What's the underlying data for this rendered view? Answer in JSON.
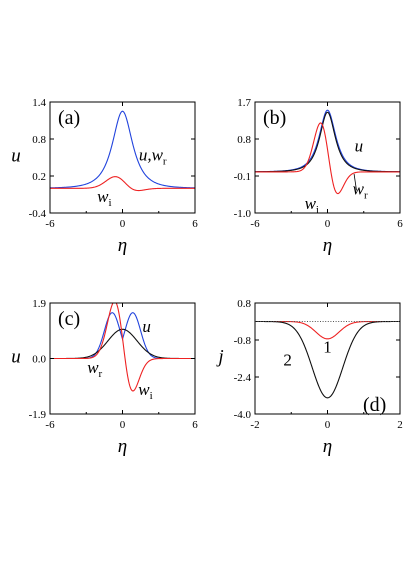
{
  "chart_data": [
    {
      "panel": "(a)",
      "type": "line",
      "xlabel": "η",
      "ylabel": "u",
      "xlim": [
        -6,
        6
      ],
      "ylim": [
        -0.4,
        1.4
      ],
      "xticks": [
        "-6",
        "0",
        "6"
      ],
      "yticks": [
        "1.4",
        "0.8",
        "0.2",
        "-0.4"
      ],
      "annotations": [
        {
          "text": "u,w",
          "sub": "r",
          "x": 2.5,
          "y": 0.45
        },
        {
          "text": "w",
          "sub": "i",
          "x": -1.5,
          "y": -0.22
        }
      ],
      "series": [
        {
          "color": "#2244dd",
          "kind": "lorentz",
          "amp": 1.25,
          "width": 1.1,
          "for": "u,w_r"
        },
        {
          "color": "#ee2222",
          "kind": "mixed",
          "amp": 0.13,
          "odd": 0.1,
          "width": 0.9,
          "for": "w_i"
        }
      ]
    },
    {
      "panel": "(b)",
      "type": "line",
      "xlabel": "η",
      "ylabel": "",
      "xlim": [
        -6,
        6
      ],
      "ylim": [
        -1.0,
        1.7
      ],
      "xticks": [
        "-6",
        "0",
        "6"
      ],
      "yticks": [
        "1.7",
        "0.8",
        "-0.1",
        "-1.0"
      ],
      "annotations": [
        {
          "text": "u",
          "sub": "",
          "x": 2.6,
          "y": 0.5
        },
        {
          "text": "w",
          "sub": "r",
          "x": 2.7,
          "y": -0.55
        },
        {
          "text": "w",
          "sub": "i",
          "x": -1.3,
          "y": -0.9
        }
      ],
      "series": [
        {
          "color": "#2244dd",
          "kind": "lorentz",
          "amp": 1.5,
          "width": 0.9,
          "for": "u"
        },
        {
          "color": "#111111",
          "kind": "lorentz",
          "amp": 1.45,
          "width": 0.85,
          "for": "w_r"
        },
        {
          "color": "#ee2222",
          "kind": "mixed",
          "amp": 0.55,
          "odd": 0.85,
          "width": 0.7,
          "for": "w_i"
        }
      ]
    },
    {
      "panel": "(c)",
      "type": "line",
      "xlabel": "η",
      "ylabel": "u",
      "xlim": [
        -6,
        6
      ],
      "ylim": [
        -1.9,
        1.9
      ],
      "xticks": [
        "-6",
        "0",
        "6"
      ],
      "yticks": [
        "1.9",
        "0.0",
        "-1.9"
      ],
      "annotations": [
        {
          "text": "u",
          "sub": "",
          "x": 2.0,
          "y": 0.9
        },
        {
          "text": "w",
          "sub": "r",
          "x": -2.3,
          "y": -0.5
        },
        {
          "text": "w",
          "sub": "i",
          "x": 1.9,
          "y": -1.25
        }
      ],
      "series": [
        {
          "color": "#2244dd",
          "kind": "twopeak",
          "amp": 1.6,
          "sep": 0.85,
          "width": 0.65,
          "for": "u"
        },
        {
          "color": "#111111",
          "kind": "gauss",
          "amp": 1.0,
          "width": 1.2,
          "for": "w_r"
        },
        {
          "color": "#ee2222",
          "kind": "mixed",
          "amp": 0.7,
          "odd": 1.55,
          "width": 0.75,
          "for": "w_i"
        }
      ]
    },
    {
      "panel": "(d)",
      "type": "line",
      "xlabel": "η",
      "ylabel": "j",
      "xlim": [
        -2,
        2
      ],
      "ylim": [
        -4.0,
        0.8
      ],
      "xticks": [
        "-2",
        "0",
        "2"
      ],
      "yticks": [
        "0.8",
        "-0.8",
        "-2.4",
        "-4.0"
      ],
      "annotations": [
        {
          "text": "1",
          "sub": "",
          "x": 0.0,
          "y": -1.35,
          "upright": true
        },
        {
          "text": "2",
          "sub": "",
          "x": -1.1,
          "y": -1.9,
          "upright": true
        }
      ],
      "series": [
        {
          "color": "#ee2222",
          "kind": "gaussneg",
          "amp": 0.75,
          "width": 0.32,
          "base": 0.0,
          "for": "1"
        },
        {
          "color": "#111111",
          "kind": "gaussneg",
          "amp": 3.3,
          "width": 0.42,
          "base": 0.0,
          "for": "2"
        },
        {
          "color": "#555555",
          "kind": "flat",
          "base": 0.0,
          "dotted": true,
          "for": "zero"
        }
      ]
    }
  ]
}
